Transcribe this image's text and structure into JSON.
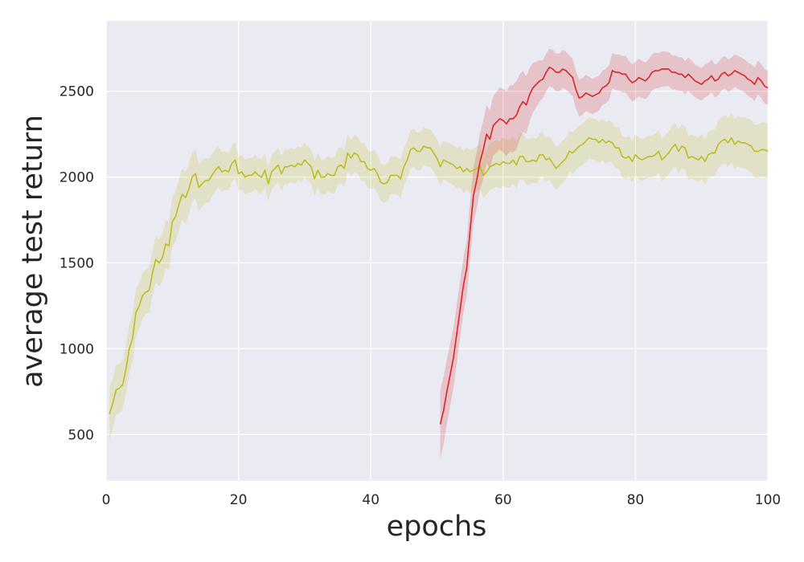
{
  "chart_data": {
    "type": "line",
    "xlabel": "epochs",
    "ylabel": "average test return",
    "xlim": [
      0,
      100
    ],
    "ylim": [
      230,
      2910
    ],
    "x_ticks": [
      0,
      20,
      40,
      60,
      80,
      100
    ],
    "y_ticks": [
      500,
      1000,
      1500,
      2000,
      2500
    ],
    "grid": true,
    "background": "#eaeaf2",
    "series": [
      {
        "color": "#bcbd22",
        "points": [
          [
            0.5,
            620
          ],
          [
            1,
            680
          ],
          [
            1.5,
            760
          ],
          [
            2,
            770
          ],
          [
            2.5,
            790
          ],
          [
            3,
            880
          ],
          [
            3.5,
            1000
          ],
          [
            4,
            1060
          ],
          [
            4.5,
            1210
          ],
          [
            5,
            1250
          ],
          [
            5.5,
            1310
          ],
          [
            6,
            1330
          ],
          [
            6.5,
            1340
          ],
          [
            7,
            1440
          ],
          [
            7.5,
            1520
          ],
          [
            8,
            1500
          ],
          [
            8.5,
            1530
          ],
          [
            9,
            1610
          ],
          [
            9.5,
            1600
          ],
          [
            10,
            1740
          ],
          [
            10.5,
            1770
          ],
          [
            11,
            1840
          ],
          [
            11.5,
            1900
          ],
          [
            12,
            1880
          ],
          [
            12.5,
            1930
          ],
          [
            13,
            2000
          ],
          [
            13.5,
            2020
          ],
          [
            14,
            1940
          ],
          [
            14.5,
            1960
          ],
          [
            15,
            1980
          ],
          [
            15.5,
            1980
          ],
          [
            16,
            2010
          ],
          [
            16.5,
            2040
          ],
          [
            17,
            2060
          ],
          [
            17.5,
            2030
          ],
          [
            18,
            2040
          ],
          [
            18.5,
            2030
          ],
          [
            19,
            2080
          ],
          [
            19.5,
            2100
          ],
          [
            20,
            2020
          ],
          [
            20.5,
            2030
          ],
          [
            21,
            2000
          ],
          [
            21.5,
            2010
          ],
          [
            22,
            2010
          ],
          [
            22.5,
            2030
          ],
          [
            23,
            2010
          ],
          [
            23.5,
            2000
          ],
          [
            24,
            2040
          ],
          [
            24.5,
            1960
          ],
          [
            25,
            2030
          ],
          [
            25.5,
            2050
          ],
          [
            26,
            2070
          ],
          [
            26.5,
            2020
          ],
          [
            27,
            2060
          ],
          [
            27.5,
            2060
          ],
          [
            28,
            2070
          ],
          [
            28.5,
            2060
          ],
          [
            29,
            2080
          ],
          [
            29.5,
            2070
          ],
          [
            30,
            2100
          ],
          [
            30.5,
            2080
          ],
          [
            31,
            2060
          ],
          [
            31.5,
            1990
          ],
          [
            32,
            2040
          ],
          [
            32.5,
            2000
          ],
          [
            33,
            2000
          ],
          [
            33.5,
            2020
          ],
          [
            34,
            2010
          ],
          [
            34.5,
            2010
          ],
          [
            35,
            2060
          ],
          [
            35.5,
            2070
          ],
          [
            36,
            2050
          ],
          [
            36.5,
            2140
          ],
          [
            37,
            2110
          ],
          [
            37.5,
            2140
          ],
          [
            38,
            2130
          ],
          [
            38.5,
            2090
          ],
          [
            39,
            2090
          ],
          [
            39.5,
            2050
          ],
          [
            40,
            2040
          ],
          [
            40.5,
            2050
          ],
          [
            41,
            2020
          ],
          [
            41.5,
            1970
          ],
          [
            42,
            1960
          ],
          [
            42.5,
            1970
          ],
          [
            43,
            2010
          ],
          [
            43.5,
            2010
          ],
          [
            44,
            2010
          ],
          [
            44.5,
            1990
          ],
          [
            45,
            2060
          ],
          [
            45.5,
            2100
          ],
          [
            46,
            2160
          ],
          [
            46.5,
            2170
          ],
          [
            47,
            2150
          ],
          [
            47.5,
            2150
          ],
          [
            48,
            2180
          ],
          [
            48.5,
            2170
          ],
          [
            49,
            2170
          ],
          [
            49.5,
            2140
          ],
          [
            50,
            2110
          ],
          [
            50.5,
            2060
          ],
          [
            51,
            2100
          ],
          [
            51.5,
            2090
          ],
          [
            52,
            2080
          ],
          [
            52.5,
            2070
          ],
          [
            53,
            2050
          ],
          [
            53.5,
            2060
          ],
          [
            54,
            2030
          ],
          [
            54.5,
            2050
          ],
          [
            55,
            2030
          ],
          [
            55.5,
            2040
          ],
          [
            56,
            2050
          ],
          [
            56.5,
            2060
          ],
          [
            57,
            2010
          ],
          [
            57.5,
            2030
          ],
          [
            58,
            2060
          ],
          [
            58.5,
            2070
          ],
          [
            59,
            2080
          ],
          [
            59.5,
            2070
          ],
          [
            60,
            2090
          ],
          [
            60.5,
            2080
          ],
          [
            61,
            2080
          ],
          [
            61.5,
            2100
          ],
          [
            62,
            2070
          ],
          [
            62.5,
            2120
          ],
          [
            63,
            2120
          ],
          [
            63.5,
            2090
          ],
          [
            64,
            2090
          ],
          [
            64.5,
            2100
          ],
          [
            65,
            2090
          ],
          [
            65.5,
            2130
          ],
          [
            66,
            2130
          ],
          [
            66.5,
            2100
          ],
          [
            67,
            2110
          ],
          [
            67.5,
            2080
          ],
          [
            68,
            2050
          ],
          [
            68.5,
            2070
          ],
          [
            69,
            2090
          ],
          [
            69.5,
            2110
          ],
          [
            70,
            2150
          ],
          [
            70.5,
            2140
          ],
          [
            71,
            2160
          ],
          [
            71.5,
            2180
          ],
          [
            72,
            2190
          ],
          [
            72.5,
            2210
          ],
          [
            73,
            2230
          ],
          [
            73.5,
            2220
          ],
          [
            74,
            2220
          ],
          [
            74.5,
            2200
          ],
          [
            75,
            2220
          ],
          [
            75.5,
            2200
          ],
          [
            76,
            2210
          ],
          [
            76.5,
            2200
          ],
          [
            77,
            2170
          ],
          [
            77.5,
            2170
          ],
          [
            78,
            2120
          ],
          [
            78.5,
            2110
          ],
          [
            79,
            2120
          ],
          [
            79.5,
            2090
          ],
          [
            80,
            2130
          ],
          [
            80.5,
            2110
          ],
          [
            81,
            2100
          ],
          [
            81.5,
            2110
          ],
          [
            82,
            2120
          ],
          [
            82.5,
            2120
          ],
          [
            83,
            2130
          ],
          [
            83.5,
            2150
          ],
          [
            84,
            2100
          ],
          [
            84.5,
            2120
          ],
          [
            85,
            2140
          ],
          [
            85.5,
            2170
          ],
          [
            86,
            2190
          ],
          [
            86.5,
            2150
          ],
          [
            87,
            2180
          ],
          [
            87.5,
            2170
          ],
          [
            88,
            2110
          ],
          [
            88.5,
            2120
          ],
          [
            89,
            2110
          ],
          [
            89.5,
            2100
          ],
          [
            90,
            2120
          ],
          [
            90.5,
            2090
          ],
          [
            91,
            2130
          ],
          [
            91.5,
            2140
          ],
          [
            92,
            2140
          ],
          [
            92.5,
            2190
          ],
          [
            93,
            2210
          ],
          [
            93.5,
            2220
          ],
          [
            94,
            2200
          ],
          [
            94.5,
            2230
          ],
          [
            95,
            2190
          ],
          [
            95.5,
            2210
          ],
          [
            96,
            2200
          ],
          [
            96.5,
            2200
          ],
          [
            97,
            2190
          ],
          [
            97.5,
            2180
          ],
          [
            98,
            2150
          ],
          [
            98.5,
            2150
          ],
          [
            99,
            2160
          ],
          [
            99.5,
            2160
          ],
          [
            100,
            2150
          ]
        ],
        "band_halfwidth": [
          [
            0,
            150
          ],
          [
            6,
            130
          ],
          [
            12,
            150
          ],
          [
            20,
            100
          ],
          [
            30,
            100
          ],
          [
            40,
            110
          ],
          [
            50,
            110
          ],
          [
            60,
            140
          ],
          [
            70,
            120
          ],
          [
            80,
            120
          ],
          [
            90,
            130
          ],
          [
            100,
            160
          ]
        ]
      },
      {
        "color": "#d62728",
        "points": [
          [
            50.5,
            560
          ],
          [
            51,
            640
          ],
          [
            51.5,
            750
          ],
          [
            52,
            850
          ],
          [
            52.5,
            950
          ],
          [
            53,
            1090
          ],
          [
            53.5,
            1230
          ],
          [
            54,
            1370
          ],
          [
            54.5,
            1470
          ],
          [
            55,
            1690
          ],
          [
            55.5,
            1890
          ],
          [
            56,
            1980
          ],
          [
            56.5,
            2090
          ],
          [
            57,
            2160
          ],
          [
            57.5,
            2250
          ],
          [
            58,
            2220
          ],
          [
            58.5,
            2300
          ],
          [
            59,
            2320
          ],
          [
            59.5,
            2340
          ],
          [
            60,
            2330
          ],
          [
            60.5,
            2310
          ],
          [
            61,
            2340
          ],
          [
            61.5,
            2340
          ],
          [
            62,
            2360
          ],
          [
            62.5,
            2410
          ],
          [
            63,
            2440
          ],
          [
            63.5,
            2420
          ],
          [
            64,
            2480
          ],
          [
            64.5,
            2520
          ],
          [
            65,
            2540
          ],
          [
            65.5,
            2560
          ],
          [
            66,
            2570
          ],
          [
            66.5,
            2610
          ],
          [
            67,
            2640
          ],
          [
            67.5,
            2630
          ],
          [
            68,
            2610
          ],
          [
            68.5,
            2610
          ],
          [
            69,
            2630
          ],
          [
            69.5,
            2620
          ],
          [
            70,
            2600
          ],
          [
            70.5,
            2580
          ],
          [
            71,
            2510
          ],
          [
            71.5,
            2460
          ],
          [
            72,
            2470
          ],
          [
            72.5,
            2490
          ],
          [
            73,
            2480
          ],
          [
            73.5,
            2470
          ],
          [
            74,
            2480
          ],
          [
            74.5,
            2490
          ],
          [
            75,
            2520
          ],
          [
            75.5,
            2530
          ],
          [
            76,
            2550
          ],
          [
            76.5,
            2620
          ],
          [
            77,
            2610
          ],
          [
            77.5,
            2610
          ],
          [
            78,
            2600
          ],
          [
            78.5,
            2600
          ],
          [
            79,
            2570
          ],
          [
            79.5,
            2550
          ],
          [
            80,
            2560
          ],
          [
            80.5,
            2580
          ],
          [
            81,
            2570
          ],
          [
            81.5,
            2560
          ],
          [
            82,
            2580
          ],
          [
            82.5,
            2610
          ],
          [
            83,
            2620
          ],
          [
            83.5,
            2620
          ],
          [
            84,
            2630
          ],
          [
            84.5,
            2630
          ],
          [
            85,
            2630
          ],
          [
            85.5,
            2610
          ],
          [
            86,
            2610
          ],
          [
            86.5,
            2600
          ],
          [
            87,
            2600
          ],
          [
            87.5,
            2580
          ],
          [
            88,
            2600
          ],
          [
            88.5,
            2580
          ],
          [
            89,
            2560
          ],
          [
            89.5,
            2550
          ],
          [
            90,
            2540
          ],
          [
            90.5,
            2560
          ],
          [
            91,
            2570
          ],
          [
            91.5,
            2590
          ],
          [
            92,
            2560
          ],
          [
            92.5,
            2570
          ],
          [
            93,
            2600
          ],
          [
            93.5,
            2610
          ],
          [
            94,
            2590
          ],
          [
            94.5,
            2600
          ],
          [
            95,
            2620
          ],
          [
            95.5,
            2610
          ],
          [
            96,
            2600
          ],
          [
            96.5,
            2590
          ],
          [
            97,
            2570
          ],
          [
            97.5,
            2560
          ],
          [
            98,
            2540
          ],
          [
            98.5,
            2580
          ],
          [
            99,
            2560
          ],
          [
            99.5,
            2530
          ],
          [
            100,
            2520
          ]
        ],
        "band_halfwidth": [
          [
            50.5,
            200
          ],
          [
            54,
            160
          ],
          [
            58,
            170
          ],
          [
            62,
            200
          ],
          [
            66,
            110
          ],
          [
            70,
            110
          ],
          [
            75,
            100
          ],
          [
            80,
            110
          ],
          [
            85,
            100
          ],
          [
            90,
            95
          ],
          [
            95,
            95
          ],
          [
            100,
            100
          ]
        ]
      }
    ]
  }
}
